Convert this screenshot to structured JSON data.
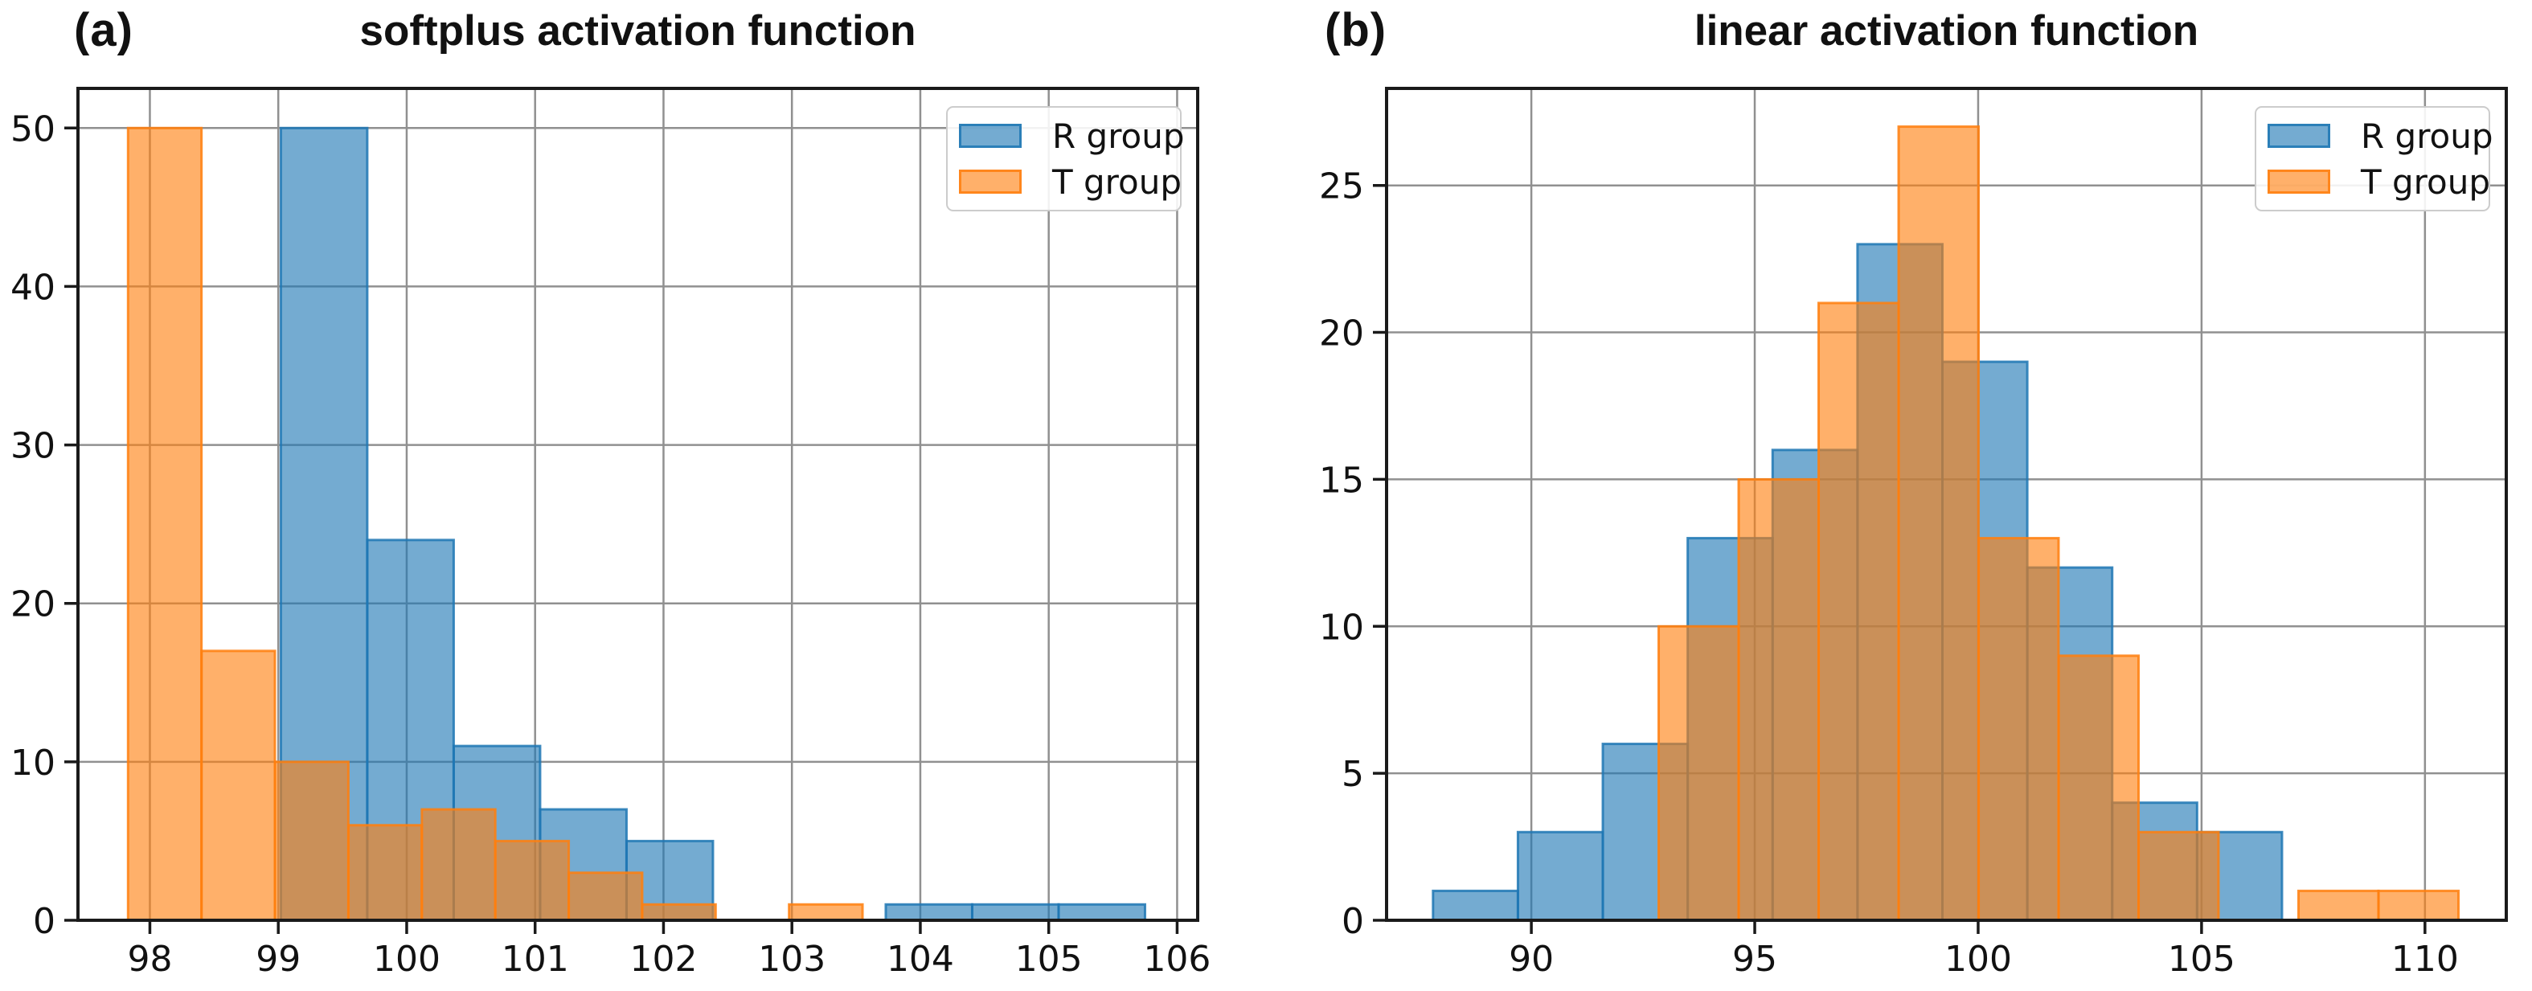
{
  "figure": {
    "background": "#ffffff",
    "description": "Two overlaid histograms comparing R group and T group distributions"
  },
  "style": {
    "fill_alpha": 0.62,
    "edge_alpha": 0.85,
    "edge_width": 3,
    "grid_color": "#909090",
    "spine_color": "#1a1a1a",
    "text_color": "#111111",
    "legend_border_color": "#cccccc"
  },
  "chart_data": [
    {
      "type": "histogram",
      "panel_label": "(a)",
      "title": "softplus activation function",
      "xlabel": "",
      "ylabel": "",
      "xlim": [
        97.44,
        106.16
      ],
      "ylim": [
        0,
        52.5
      ],
      "xticks": [
        98,
        99,
        100,
        101,
        102,
        103,
        104,
        105,
        106
      ],
      "yticks": [
        0,
        10,
        20,
        30,
        40,
        50
      ],
      "grid": true,
      "legend_position": "upper right",
      "series": [
        {
          "name": "R group",
          "color": "#1f77b4",
          "bin_start": 99.02,
          "bin_width": 0.673,
          "counts": [
            50,
            24,
            11,
            7,
            5,
            0,
            0,
            1,
            1,
            1
          ]
        },
        {
          "name": "T group",
          "color": "#ff7f0e",
          "bin_start": 97.83,
          "bin_width": 0.572,
          "counts": [
            50,
            17,
            10,
            6,
            7,
            5,
            3,
            1,
            0,
            1
          ]
        }
      ]
    },
    {
      "type": "histogram",
      "panel_label": "(b)",
      "title": "linear activation function",
      "xlabel": "",
      "ylabel": "",
      "xlim": [
        86.76,
        111.82
      ],
      "ylim": [
        0,
        28.3
      ],
      "xticks": [
        90,
        95,
        100,
        105,
        110
      ],
      "yticks": [
        0,
        5,
        10,
        15,
        20,
        25
      ],
      "grid": true,
      "legend_position": "upper right",
      "series": [
        {
          "name": "R group",
          "color": "#1f77b4",
          "bin_start": 87.8,
          "bin_width": 1.9,
          "counts": [
            1,
            3,
            6,
            13,
            16,
            23,
            19,
            12,
            4,
            3
          ]
        },
        {
          "name": "T group",
          "color": "#ff7f0e",
          "bin_start": 92.85,
          "bin_width": 1.79,
          "counts": [
            10,
            15,
            21,
            27,
            13,
            9,
            3,
            0,
            1,
            1
          ]
        }
      ]
    }
  ]
}
